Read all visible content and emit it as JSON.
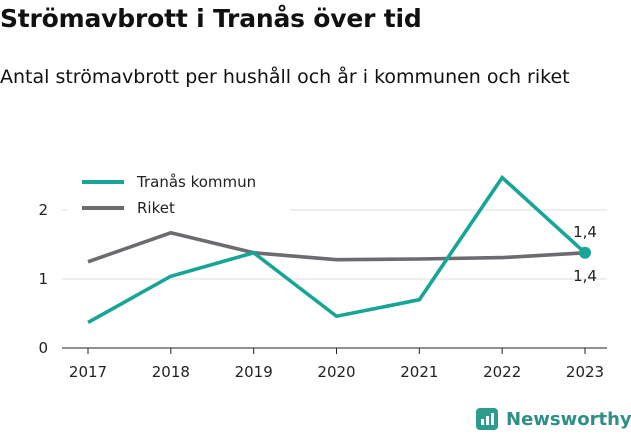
{
  "header": {
    "title": "Strömavbrott i Tranås över tid",
    "subtitle": "Antal strömavbrott per hushåll och år i kommunen och riket"
  },
  "brand": {
    "logo_text": "Newsworthy",
    "logo_color": "#2e9c8c"
  },
  "chart_data": {
    "type": "line",
    "x": [
      "2017",
      "2018",
      "2019",
      "2020",
      "2021",
      "2022",
      "2023"
    ],
    "series": [
      {
        "name": "Tranås kommun",
        "color": "#16a597",
        "values": [
          0.37,
          1.04,
          1.38,
          0.46,
          0.7,
          2.47,
          1.38
        ]
      },
      {
        "name": "Riket",
        "color": "#6b6b70",
        "values": [
          1.25,
          1.67,
          1.38,
          1.28,
          1.29,
          1.31,
          1.38
        ]
      }
    ],
    "y_ticks": [
      "0",
      "1",
      "2"
    ],
    "ylim": [
      0,
      2.6
    ],
    "grid": true,
    "legend_position": "top-left",
    "end_labels": {
      "upper": "1,4",
      "lower": "1,4"
    }
  }
}
